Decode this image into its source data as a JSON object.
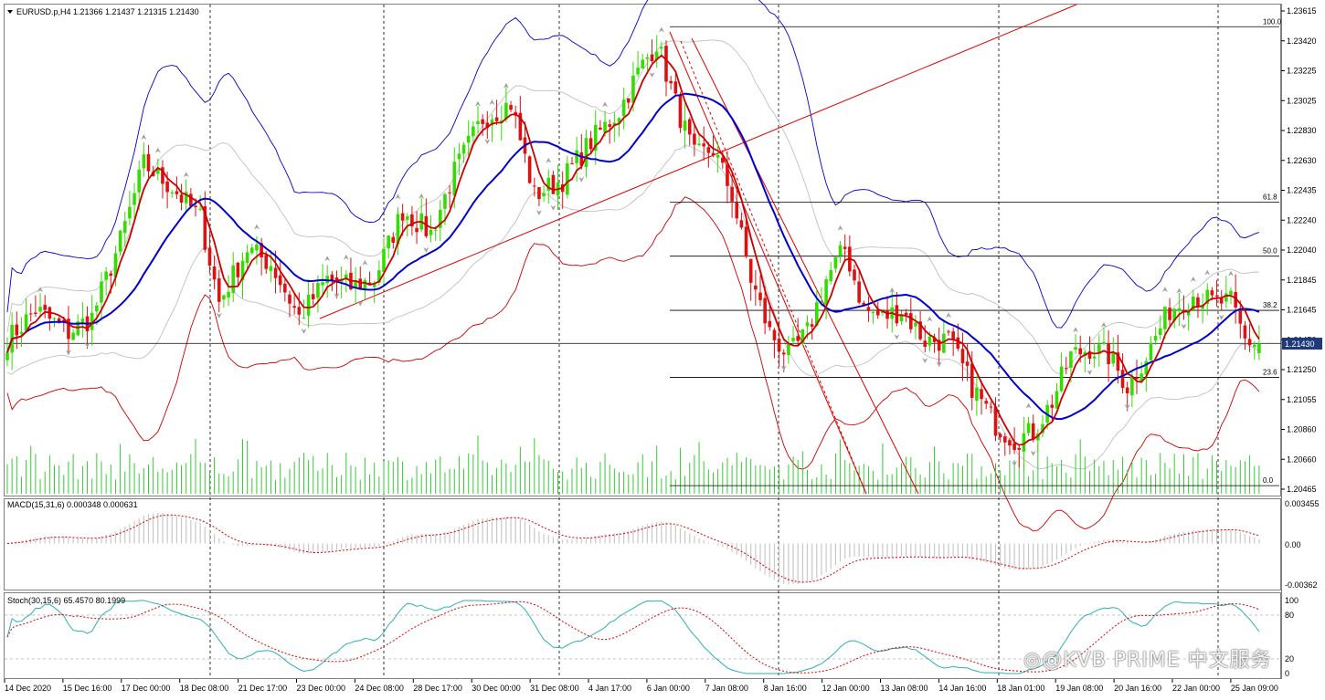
{
  "window": {
    "symbol_header": "EURUSD.p,H4  1.21366 1.21437 1.21315 1.21430"
  },
  "price_axis": {
    "labels": [
      "1.23615",
      "1.23420",
      "1.23225",
      "1.23025",
      "1.22830",
      "1.22630",
      "1.22435",
      "1.22240",
      "1.22040",
      "1.21845",
      "1.21645",
      "1.21450",
      "1.21250",
      "1.21055",
      "1.20860",
      "1.20660",
      "1.20465"
    ],
    "current_price": "1.21430"
  },
  "fib_levels": [
    "100.0",
    "61.8",
    "50.0",
    "38.2",
    "23.6",
    "0.0"
  ],
  "time_axis": {
    "labels": [
      "14 Dec 2020",
      "15 Dec 16:00",
      "17 Dec 00:00",
      "18 Dec 08:00",
      "21 Dec 17:00",
      "23 Dec 00:00",
      "24 Dec 08:00",
      "28 Dec 17:00",
      "30 Dec 00:00",
      "31 Dec 08:00",
      "4 Jan 17:00",
      "6 Jan 00:00",
      "7 Jan 08:00",
      "8 Jan 16:00",
      "12 Jan 00:00",
      "13 Jan 08:00",
      "14 Jan 16:00",
      "18 Jan 01:00",
      "19 Jan 08:00",
      "20 Jan 16:00",
      "22 Jan 00:00",
      "25 Jan 09:00"
    ]
  },
  "macd": {
    "header": "MACD(15,31,6) 0.000348 0.000631",
    "axis_labels": [
      "0.003455",
      "0.00",
      "-0.00362"
    ]
  },
  "stoch": {
    "header": "Stoch(30,15,6) 65.4570 80.1999",
    "axis_labels": [
      "100",
      "80",
      "20",
      "0"
    ]
  },
  "watermark": "◎@KVB PRIME 中文服务",
  "colors": {
    "bull": "#33dd00",
    "bear": "#dd1111",
    "ma_fast": "#cc0000",
    "ma_slow": "#0000cc",
    "band_outer_top": "#0000cc",
    "band_outer_bottom": "#cc0000",
    "band_inner": "#c0c0c0",
    "trendline": "#dd0000",
    "fib": "#000000",
    "macd_hist": "#c8c8c8",
    "macd_signal": "#dd0000",
    "stoch_main": "#30b0b0",
    "stoch_signal": "#dd0000",
    "volume": "#33cc33"
  },
  "chart_data": {
    "type": "candlestick",
    "symbol": "EURUSD.p",
    "timeframe": "H4",
    "ohlc_last": {
      "open": 1.21366,
      "high": 1.21437,
      "low": 1.21315,
      "close": 1.2143
    },
    "ylim": [
      1.20465,
      1.23615
    ],
    "anchors": [
      [
        0,
        1.2145
      ],
      [
        6,
        1.2165
      ],
      [
        13,
        1.215
      ],
      [
        18,
        1.216
      ],
      [
        24,
        1.221
      ],
      [
        29,
        1.226
      ],
      [
        35,
        1.2245
      ],
      [
        41,
        1.2225
      ],
      [
        45,
        1.217
      ],
      [
        51,
        1.2205
      ],
      [
        56,
        1.2195
      ],
      [
        62,
        1.216
      ],
      [
        68,
        1.2185
      ],
      [
        73,
        1.218
      ],
      [
        78,
        1.2185
      ],
      [
        84,
        1.223
      ],
      [
        90,
        1.2215
      ],
      [
        95,
        1.2255
      ],
      [
        101,
        1.229
      ],
      [
        107,
        1.23
      ],
      [
        112,
        1.224
      ],
      [
        118,
        1.225
      ],
      [
        124,
        1.2275
      ],
      [
        130,
        1.2295
      ],
      [
        134,
        1.232
      ],
      [
        138,
        1.234
      ],
      [
        142,
        1.23
      ],
      [
        146,
        1.2265
      ],
      [
        150,
        1.227
      ],
      [
        154,
        1.224
      ],
      [
        158,
        1.2185
      ],
      [
        162,
        1.215
      ],
      [
        166,
        1.2135
      ],
      [
        170,
        1.215
      ],
      [
        174,
        1.2185
      ],
      [
        178,
        1.2205
      ],
      [
        182,
        1.2165
      ],
      [
        186,
        1.216
      ],
      [
        190,
        1.2165
      ],
      [
        195,
        1.2145
      ],
      [
        200,
        1.2145
      ],
      [
        205,
        1.2115
      ],
      [
        210,
        1.209
      ],
      [
        214,
        1.208
      ],
      [
        218,
        1.2085
      ],
      [
        222,
        1.2105
      ],
      [
        226,
        1.2135
      ],
      [
        230,
        1.214
      ],
      [
        234,
        1.2135
      ],
      [
        238,
        1.2115
      ],
      [
        242,
        1.2135
      ],
      [
        247,
        1.2165
      ],
      [
        252,
        1.2175
      ],
      [
        256,
        1.217
      ],
      [
        260,
        1.217
      ],
      [
        263,
        1.2145
      ],
      [
        266,
        1.2143
      ]
    ],
    "fib_retracement": {
      "level_100": 1.235,
      "level_0": 1.205,
      "levels": [
        100.0,
        61.8,
        50.0,
        38.2,
        23.6,
        0.0
      ]
    },
    "macd": {
      "fast": 15,
      "slow": 31,
      "signal": 6,
      "main": 0.000348,
      "signal_value": 0.000631,
      "ylim": [
        -0.00362,
        0.003455
      ]
    },
    "stochastic": {
      "k": 30,
      "d": 15,
      "slowing": 6,
      "main": 65.457,
      "signal": 80.1999,
      "levels": [
        80,
        20
      ],
      "ylim": [
        0,
        100
      ]
    }
  }
}
